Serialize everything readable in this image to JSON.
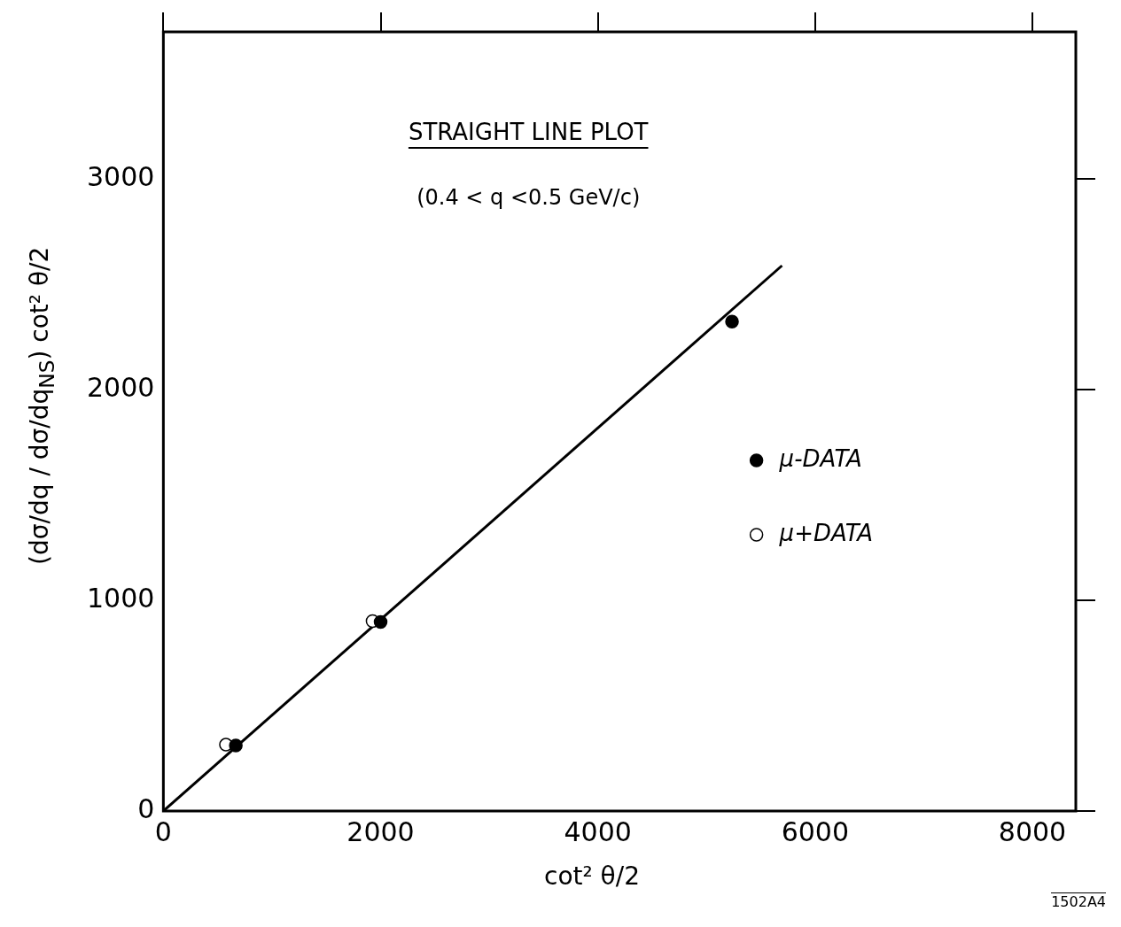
{
  "chart_data": {
    "type": "scatter",
    "title": "STRAIGHT LINE PLOT",
    "subtitle": "(0.4 < q <0.5 GeV/c)",
    "xlabel": "cot² θ/2",
    "ylabel": "(dσ/dq / dσ/dq$_{NS}$) cot² θ/2",
    "annotations": [
      "1502A4"
    ],
    "xlim": [
      0,
      8400
    ],
    "ylim": [
      0,
      3700
    ],
    "xticks": [
      0,
      2000,
      4000,
      6000,
      8000
    ],
    "yticks": [
      0,
      1000,
      2000,
      3000
    ],
    "grid": false,
    "legend": "right",
    "marker": "circle",
    "series": [
      {
        "name": "μ-DATA",
        "color": "#000000",
        "x": [
          667,
          2000,
          5235
        ],
        "values": [
          311,
          898,
          2324
        ]
      },
      {
        "name": "μ+DATA",
        "color": "#ffffff",
        "x": [
          576,
          1926
        ],
        "values": [
          315,
          902
        ]
      },
      {
        "type": "line",
        "color": "#000000",
        "x": [
          0,
          5695
        ],
        "values": [
          0,
          2590
        ],
        "marker": "none",
        "line_style": "solid"
      }
    ]
  }
}
